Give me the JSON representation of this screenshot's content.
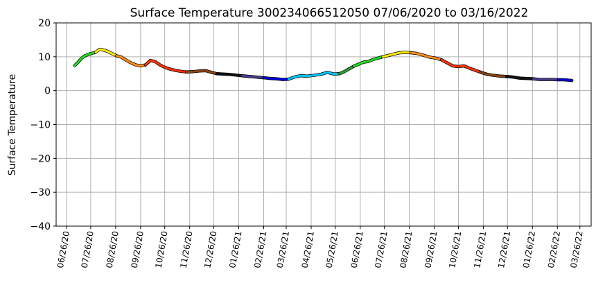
{
  "chart_data": {
    "type": "line",
    "title": "Surface Temperature 300234066512050  07/06/2020 to 03/16/2022",
    "xlabel": "",
    "ylabel": "Surface Temperature",
    "xlim": [
      "2020-06-13",
      "2022-04-09"
    ],
    "ylim": [
      -40,
      20
    ],
    "yticks": [
      -40,
      -30,
      -20,
      -10,
      0,
      10,
      20
    ],
    "xticks": [
      {
        "date": "2020-06-26",
        "label": "06/26/20"
      },
      {
        "date": "2020-07-26",
        "label": "07/26/20"
      },
      {
        "date": "2020-08-26",
        "label": "08/26/20"
      },
      {
        "date": "2020-09-26",
        "label": "09/26/20"
      },
      {
        "date": "2020-10-26",
        "label": "10/26/20"
      },
      {
        "date": "2020-11-26",
        "label": "11/26/20"
      },
      {
        "date": "2020-12-26",
        "label": "12/26/20"
      },
      {
        "date": "2021-01-26",
        "label": "01/26/21"
      },
      {
        "date": "2021-02-26",
        "label": "02/26/21"
      },
      {
        "date": "2021-03-26",
        "label": "03/26/21"
      },
      {
        "date": "2021-04-26",
        "label": "04/26/21"
      },
      {
        "date": "2021-05-26",
        "label": "05/26/21"
      },
      {
        "date": "2021-06-26",
        "label": "06/26/21"
      },
      {
        "date": "2021-07-26",
        "label": "07/26/21"
      },
      {
        "date": "2021-08-26",
        "label": "08/26/21"
      },
      {
        "date": "2021-09-26",
        "label": "09/26/21"
      },
      {
        "date": "2021-10-26",
        "label": "10/26/21"
      },
      {
        "date": "2021-11-26",
        "label": "11/26/21"
      },
      {
        "date": "2021-12-26",
        "label": "12/26/21"
      },
      {
        "date": "2022-01-26",
        "label": "01/26/22"
      },
      {
        "date": "2022-02-26",
        "label": "02/26/22"
      },
      {
        "date": "2022-03-26",
        "label": "03/26/22"
      }
    ],
    "grid": true,
    "legend": "none",
    "series": [
      {
        "color": "#22dd22",
        "points": [
          [
            "2020-07-06",
            7.4
          ],
          [
            "2020-07-10",
            8.3
          ],
          [
            "2020-07-14",
            9.4
          ],
          [
            "2020-07-18",
            10.2
          ],
          [
            "2020-07-22",
            10.6
          ],
          [
            "2020-07-27",
            11.0
          ],
          [
            "2020-08-01",
            11.3
          ]
        ]
      },
      {
        "color": "#ffee00",
        "points": [
          [
            "2020-08-01",
            11.3
          ],
          [
            "2020-08-06",
            12.2
          ],
          [
            "2020-08-11",
            12.0
          ],
          [
            "2020-08-16",
            11.6
          ],
          [
            "2020-08-21",
            11.0
          ],
          [
            "2020-08-27",
            10.3
          ]
        ]
      },
      {
        "color": "#ff8c1a",
        "points": [
          [
            "2020-08-27",
            10.3
          ],
          [
            "2020-09-02",
            9.9
          ],
          [
            "2020-09-08",
            9.0
          ],
          [
            "2020-09-14",
            8.2
          ],
          [
            "2020-09-20",
            7.6
          ],
          [
            "2020-09-26",
            7.3
          ],
          [
            "2020-10-02",
            7.6
          ]
        ]
      },
      {
        "color": "#ff3300",
        "points": [
          [
            "2020-10-02",
            7.6
          ],
          [
            "2020-10-08",
            8.9
          ],
          [
            "2020-10-14",
            8.6
          ],
          [
            "2020-10-20",
            7.6
          ],
          [
            "2020-10-26",
            6.9
          ],
          [
            "2020-11-01",
            6.4
          ],
          [
            "2020-11-08",
            6.0
          ],
          [
            "2020-11-15",
            5.7
          ],
          [
            "2020-11-22",
            5.5
          ]
        ]
      },
      {
        "color": "#8B4513",
        "points": [
          [
            "2020-11-22",
            5.5
          ],
          [
            "2020-11-30",
            5.6
          ],
          [
            "2020-12-08",
            5.8
          ],
          [
            "2020-12-16",
            5.9
          ],
          [
            "2020-12-23",
            5.4
          ],
          [
            "2020-12-30",
            5.0
          ]
        ]
      },
      {
        "color": "#111111",
        "points": [
          [
            "2020-12-30",
            5.0
          ],
          [
            "2021-01-06",
            4.9
          ],
          [
            "2021-01-14",
            4.8
          ],
          [
            "2021-01-22",
            4.6
          ],
          [
            "2021-01-30",
            4.4
          ]
        ]
      },
      {
        "color": "#483d8b",
        "points": [
          [
            "2021-01-30",
            4.4
          ],
          [
            "2021-02-08",
            4.2
          ],
          [
            "2021-02-17",
            4.0
          ],
          [
            "2021-02-26",
            3.8
          ]
        ]
      },
      {
        "color": "#0000dd",
        "points": [
          [
            "2021-02-26",
            3.8
          ],
          [
            "2021-03-06",
            3.6
          ],
          [
            "2021-03-14",
            3.5
          ],
          [
            "2021-03-22",
            3.3
          ],
          [
            "2021-03-29",
            3.4
          ]
        ]
      },
      {
        "color": "#00c8ff",
        "points": [
          [
            "2021-03-29",
            3.4
          ],
          [
            "2021-04-05",
            4.0
          ],
          [
            "2021-04-13",
            4.4
          ],
          [
            "2021-04-21",
            4.3
          ],
          [
            "2021-04-29",
            4.5
          ],
          [
            "2021-05-08",
            4.8
          ],
          [
            "2021-05-16",
            5.4
          ],
          [
            "2021-05-24",
            4.9
          ],
          [
            "2021-05-31",
            5.0
          ]
        ]
      },
      {
        "color": "#2e9e2e",
        "points": [
          [
            "2021-05-31",
            5.0
          ],
          [
            "2021-06-06",
            5.6
          ],
          [
            "2021-06-12",
            6.4
          ],
          [
            "2021-06-18",
            7.2
          ]
        ]
      },
      {
        "color": "#22dd22",
        "points": [
          [
            "2021-06-18",
            7.2
          ],
          [
            "2021-06-24",
            7.8
          ],
          [
            "2021-06-30",
            8.4
          ],
          [
            "2021-07-06",
            8.6
          ],
          [
            "2021-07-12",
            9.2
          ],
          [
            "2021-07-18",
            9.6
          ],
          [
            "2021-07-24",
            10.0
          ]
        ]
      },
      {
        "color": "#ffee00",
        "points": [
          [
            "2021-07-24",
            10.0
          ],
          [
            "2021-07-31",
            10.4
          ],
          [
            "2021-08-07",
            10.8
          ],
          [
            "2021-08-14",
            11.2
          ],
          [
            "2021-08-21",
            11.3
          ],
          [
            "2021-08-28",
            11.2
          ]
        ]
      },
      {
        "color": "#ff8c1a",
        "points": [
          [
            "2021-08-28",
            11.2
          ],
          [
            "2021-09-04",
            11.0
          ],
          [
            "2021-09-12",
            10.5
          ],
          [
            "2021-09-20",
            9.9
          ],
          [
            "2021-09-28",
            9.6
          ],
          [
            "2021-10-05",
            9.1
          ]
        ]
      },
      {
        "color": "#ff3300",
        "points": [
          [
            "2021-10-05",
            9.1
          ],
          [
            "2021-10-12",
            8.2
          ],
          [
            "2021-10-19",
            7.3
          ],
          [
            "2021-10-26",
            7.1
          ],
          [
            "2021-11-02",
            7.3
          ],
          [
            "2021-11-09",
            6.6
          ],
          [
            "2021-11-16",
            6.0
          ],
          [
            "2021-11-23",
            5.4
          ]
        ]
      },
      {
        "color": "#8B4513",
        "points": [
          [
            "2021-11-23",
            5.4
          ],
          [
            "2021-12-01",
            4.8
          ],
          [
            "2021-12-09",
            4.5
          ],
          [
            "2021-12-17",
            4.3
          ],
          [
            "2021-12-25",
            4.2
          ]
        ]
      },
      {
        "color": "#111111",
        "points": [
          [
            "2021-12-25",
            4.2
          ],
          [
            "2022-01-02",
            4.0
          ],
          [
            "2022-01-10",
            3.7
          ],
          [
            "2022-01-18",
            3.6
          ],
          [
            "2022-01-27",
            3.5
          ]
        ]
      },
      {
        "color": "#483d8b",
        "points": [
          [
            "2022-01-27",
            3.5
          ],
          [
            "2022-02-04",
            3.3
          ],
          [
            "2022-02-12",
            3.3
          ],
          [
            "2022-02-20",
            3.3
          ],
          [
            "2022-02-27",
            3.2
          ]
        ]
      },
      {
        "color": "#0000dd",
        "points": [
          [
            "2022-02-27",
            3.2
          ],
          [
            "2022-03-06",
            3.2
          ],
          [
            "2022-03-11",
            3.1
          ],
          [
            "2022-03-16",
            3.0
          ]
        ]
      }
    ]
  }
}
